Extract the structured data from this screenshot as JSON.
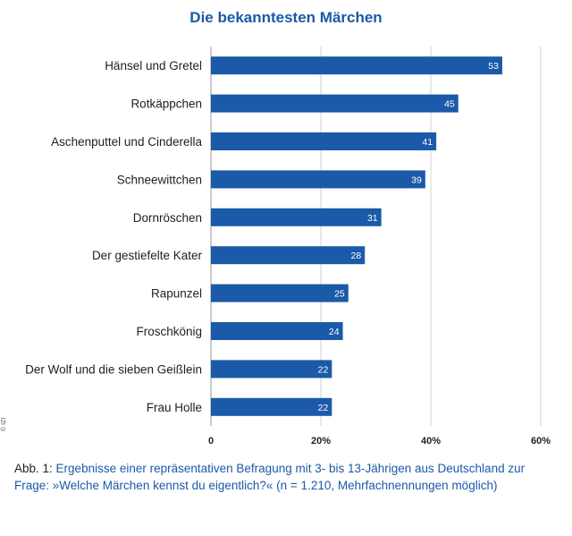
{
  "chart_data": {
    "type": "bar",
    "orientation": "horizontal",
    "title": "Die bekanntesten Märchen",
    "categories": [
      "Hänsel und Gretel",
      "Rotkäppchen",
      "Aschenputtel und Cinderella",
      "Schneewittchen",
      "Dornröschen",
      "Der gestiefelte Kater",
      "Rapunzel",
      "Froschkönig",
      "Der Wolf und die sieben Geißlein",
      "Frau Holle"
    ],
    "values": [
      53,
      45,
      41,
      39,
      31,
      28,
      25,
      24,
      22,
      22
    ],
    "xlim": [
      0,
      60
    ],
    "xticks": [
      0,
      20,
      40,
      60
    ],
    "xtick_labels": [
      "0",
      "20%",
      "40%",
      "60%"
    ],
    "grid": "vertical",
    "bar_color": "#1a5aa8"
  },
  "copyright": "© IZI",
  "caption": {
    "prefix": "Abb. 1: ",
    "text": "Ergebnisse einer repräsentativen Befragung mit 3- bis 13-Jährigen aus Deutschland zur Frage: »Welche Märchen kennst du eigentlich?« (n = 1.210, Mehrfachnennungen möglich)"
  }
}
